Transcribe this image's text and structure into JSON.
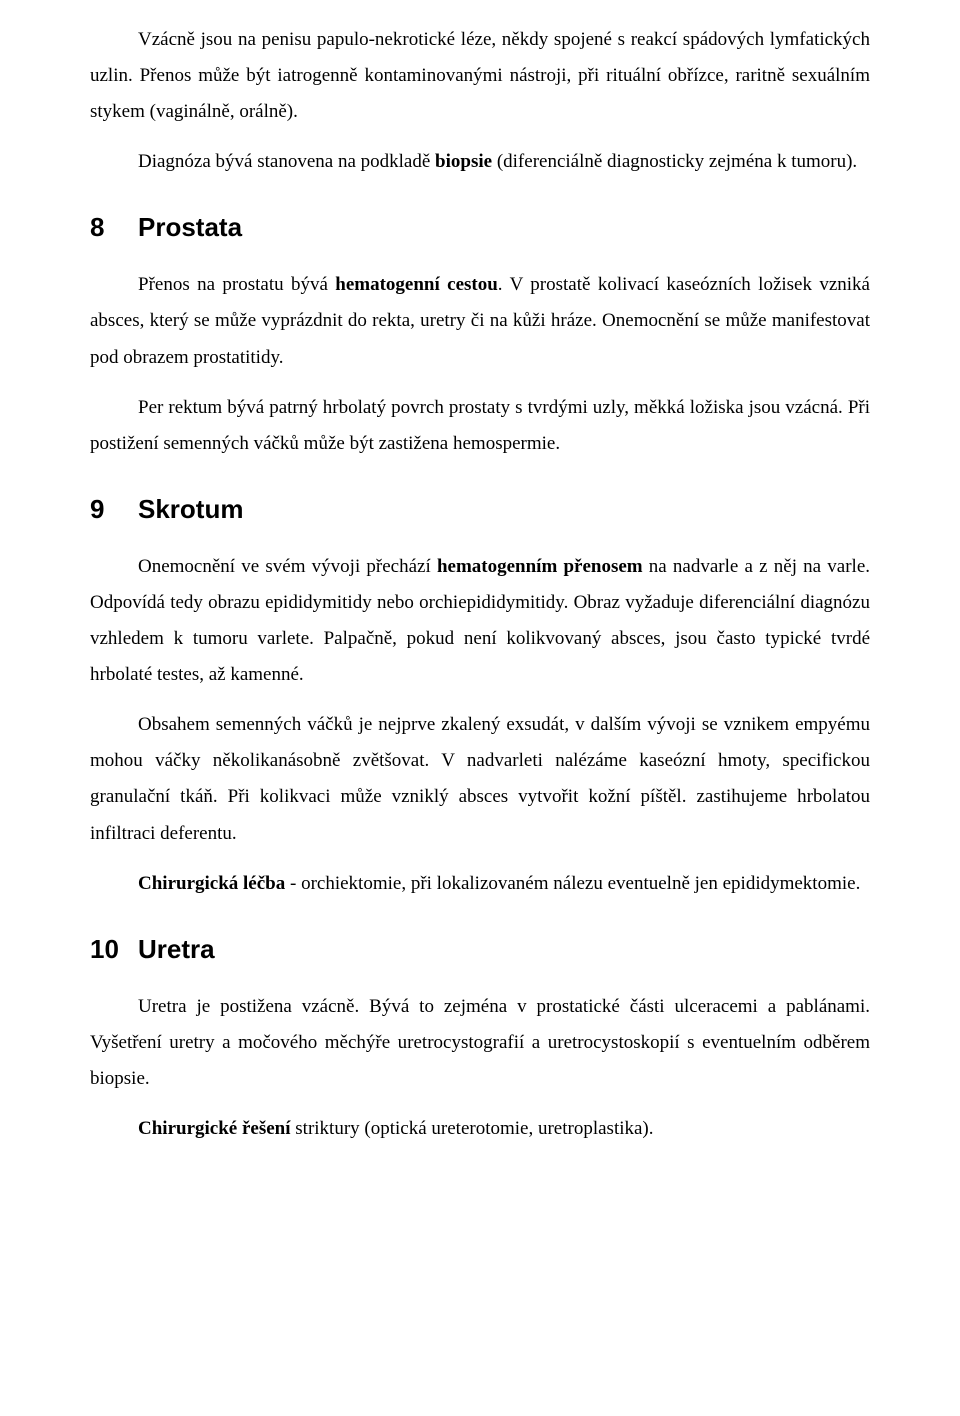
{
  "p1": "Vzácně jsou na penisu papulo-nekrotické léze, někdy spojené s reakcí spádových lymfatických uzlin. Přenos může být iatrogenně kontaminovanými nástroji, při rituální obřízce, raritně sexuálním stykem (vaginálně, orálně).",
  "p2a": "Diagnóza bývá stanovena na podkladě ",
  "p2b": "biopsie",
  "p2c": " (diferenciálně diagnosticky zejména k tumoru).",
  "h8num": "8",
  "h8": "Prostata",
  "p3a": "Přenos na prostatu bývá ",
  "p3b": "hematogenní cestou",
  "p3c": ". V prostatě kolivací kaseózních ložisek vzniká absces, který se může vyprázdnit do rekta, uretry či na kůži hráze. Onemocnění se může manifestovat pod obrazem prostatitidy.",
  "p4": "Per rektum bývá patrný hrbolatý povrch prostaty s tvrdými uzly, měkká ložiska jsou vzácná. Při postižení semenných váčků může být zastižena hemospermie.",
  "h9num": "9",
  "h9": "Skrotum",
  "p5a": "Onemocnění ve svém vývoji přechází ",
  "p5b": "hematogenním přenosem",
  "p5c": " na nadvarle a z něj na varle. Odpovídá tedy obrazu epididymitidy nebo orchiepididymitidy. Obraz vyžaduje diferenciální diagnózu vzhledem k tumoru varlete. Palpačně, pokud není kolikvovaný absces, jsou často typické tvrdé hrbolaté testes, až kamenné.",
  "p6": "Obsahem semenných váčků je nejprve zkalený exsudát, v dalším vývoji se vznikem empyému mohou váčky několikanásobně zvětšovat. V nadvarleti nalézáme kaseózní hmoty, specifickou granulační tkáň. Při kolikvaci může vzniklý absces vytvořit kožní píštěl. zastihujeme hrbolatou infiltraci deferentu.",
  "p7a": "Chirurgická léčba",
  "p7b": " - orchiektomie, při lokalizovaném nálezu eventuelně jen epididymektomie.",
  "h10num": "10",
  "h10": "Uretra",
  "p8": "Uretra je postižena vzácně. Bývá to zejména v prostatické části ulceracemi a pablánami. Vyšetření uretry a močového měchýře uretrocystografií a uretrocystoskopií s eventuelním odběrem biopsie.",
  "p9a": "Chirurgické řešení",
  "p9b": " striktury (optická ureterotomie, uretroplastika)."
}
